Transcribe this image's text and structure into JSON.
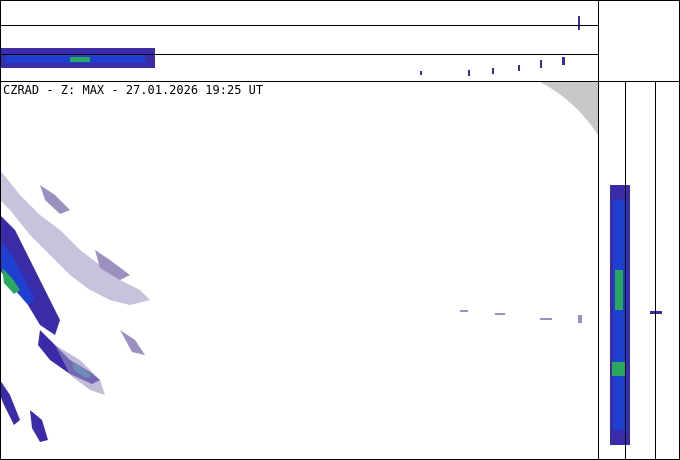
{
  "title": "CZRAD - Z: MAX - 27.01.2026 19:25 UT"
}
